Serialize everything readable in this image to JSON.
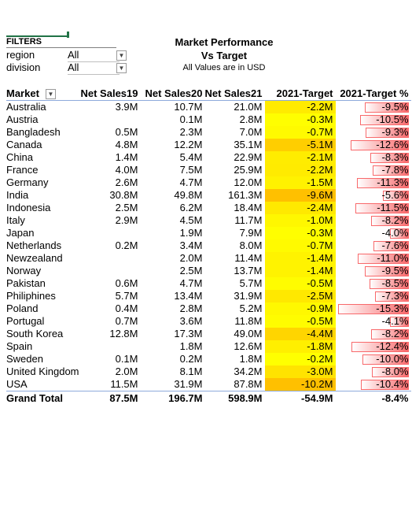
{
  "filters": {
    "label": "FILTERS",
    "items": [
      {
        "name": "region",
        "value": "All"
      },
      {
        "name": "division",
        "value": "All"
      }
    ]
  },
  "header": {
    "title_line1": "Market Performance",
    "title_line2": "Vs Target",
    "subtitle": "All Values are in USD"
  },
  "table": {
    "columns": [
      "Market",
      "Net Sales19",
      "Net Sales20",
      "Net Sales21",
      "2021-Target",
      "2021-Target %"
    ],
    "rows": [
      {
        "market": "Australia",
        "ns19": "3.9M",
        "ns20": "10.7M",
        "ns21": "21.0M",
        "tgt": "-2.2M",
        "tgt_val": -2.2,
        "pct": "-9.5%",
        "pct_val": -9.5
      },
      {
        "market": "Austria",
        "ns19": "",
        "ns20": "0.1M",
        "ns21": "2.8M",
        "tgt": "-0.3M",
        "tgt_val": -0.3,
        "pct": "-10.5%",
        "pct_val": -10.5
      },
      {
        "market": "Bangladesh",
        "ns19": "0.5M",
        "ns20": "2.3M",
        "ns21": "7.0M",
        "tgt": "-0.7M",
        "tgt_val": -0.7,
        "pct": "-9.3%",
        "pct_val": -9.3
      },
      {
        "market": "Canada",
        "ns19": "4.8M",
        "ns20": "12.2M",
        "ns21": "35.1M",
        "tgt": "-5.1M",
        "tgt_val": -5.1,
        "pct": "-12.6%",
        "pct_val": -12.6
      },
      {
        "market": "China",
        "ns19": "1.4M",
        "ns20": "5.4M",
        "ns21": "22.9M",
        "tgt": "-2.1M",
        "tgt_val": -2.1,
        "pct": "-8.3%",
        "pct_val": -8.3
      },
      {
        "market": "France",
        "ns19": "4.0M",
        "ns20": "7.5M",
        "ns21": "25.9M",
        "tgt": "-2.2M",
        "tgt_val": -2.2,
        "pct": "-7.8%",
        "pct_val": -7.8
      },
      {
        "market": "Germany",
        "ns19": "2.6M",
        "ns20": "4.7M",
        "ns21": "12.0M",
        "tgt": "-1.5M",
        "tgt_val": -1.5,
        "pct": "-11.3%",
        "pct_val": -11.3
      },
      {
        "market": "India",
        "ns19": "30.8M",
        "ns20": "49.8M",
        "ns21": "161.3M",
        "tgt": "-9.6M",
        "tgt_val": -9.6,
        "pct": "-5.6%",
        "pct_val": -5.6
      },
      {
        "market": "Indonesia",
        "ns19": "2.5M",
        "ns20": "6.2M",
        "ns21": "18.4M",
        "tgt": "-2.4M",
        "tgt_val": -2.4,
        "pct": "-11.5%",
        "pct_val": -11.5
      },
      {
        "market": "Italy",
        "ns19": "2.9M",
        "ns20": "4.5M",
        "ns21": "11.7M",
        "tgt": "-1.0M",
        "tgt_val": -1.0,
        "pct": "-8.2%",
        "pct_val": -8.2
      },
      {
        "market": "Japan",
        "ns19": "",
        "ns20": "1.9M",
        "ns21": "7.9M",
        "tgt": "-0.3M",
        "tgt_val": -0.3,
        "pct": "-4.0%",
        "pct_val": -4.0
      },
      {
        "market": "Netherlands",
        "ns19": "0.2M",
        "ns20": "3.4M",
        "ns21": "8.0M",
        "tgt": "-0.7M",
        "tgt_val": -0.7,
        "pct": "-7.6%",
        "pct_val": -7.6
      },
      {
        "market": "Newzealand",
        "ns19": "",
        "ns20": "2.0M",
        "ns21": "11.4M",
        "tgt": "-1.4M",
        "tgt_val": -1.4,
        "pct": "-11.0%",
        "pct_val": -11.0
      },
      {
        "market": "Norway",
        "ns19": "",
        "ns20": "2.5M",
        "ns21": "13.7M",
        "tgt": "-1.4M",
        "tgt_val": -1.4,
        "pct": "-9.5%",
        "pct_val": -9.5
      },
      {
        "market": "Pakistan",
        "ns19": "0.6M",
        "ns20": "4.7M",
        "ns21": "5.7M",
        "tgt": "-0.5M",
        "tgt_val": -0.5,
        "pct": "-8.5%",
        "pct_val": -8.5
      },
      {
        "market": "Philiphines",
        "ns19": "5.7M",
        "ns20": "13.4M",
        "ns21": "31.9M",
        "tgt": "-2.5M",
        "tgt_val": -2.5,
        "pct": "-7.3%",
        "pct_val": -7.3
      },
      {
        "market": "Poland",
        "ns19": "0.4M",
        "ns20": "2.8M",
        "ns21": "5.2M",
        "tgt": "-0.9M",
        "tgt_val": -0.9,
        "pct": "-15.3%",
        "pct_val": -15.3
      },
      {
        "market": "Portugal",
        "ns19": "0.7M",
        "ns20": "3.6M",
        "ns21": "11.8M",
        "tgt": "-0.5M",
        "tgt_val": -0.5,
        "pct": "-4.1%",
        "pct_val": -4.1
      },
      {
        "market": "South Korea",
        "ns19": "12.8M",
        "ns20": "17.3M",
        "ns21": "49.0M",
        "tgt": "-4.4M",
        "tgt_val": -4.4,
        "pct": "-8.2%",
        "pct_val": -8.2
      },
      {
        "market": "Spain",
        "ns19": "",
        "ns20": "1.8M",
        "ns21": "12.6M",
        "tgt": "-1.8M",
        "tgt_val": -1.8,
        "pct": "-12.4%",
        "pct_val": -12.4
      },
      {
        "market": "Sweden",
        "ns19": "0.1M",
        "ns20": "0.2M",
        "ns21": "1.8M",
        "tgt": "-0.2M",
        "tgt_val": -0.2,
        "pct": "-10.0%",
        "pct_val": -10.0
      },
      {
        "market": "United Kingdom",
        "ns19": "2.0M",
        "ns20": "8.1M",
        "ns21": "34.2M",
        "tgt": "-3.0M",
        "tgt_val": -3.0,
        "pct": "-8.0%",
        "pct_val": -8.0
      },
      {
        "market": "USA",
        "ns19": "11.5M",
        "ns20": "31.9M",
        "ns21": "87.8M",
        "tgt": "-10.2M",
        "tgt_val": -10.2,
        "pct": "-10.4%",
        "pct_val": -10.4
      }
    ],
    "total": {
      "market": "Grand Total",
      "ns19": "87.5M",
      "ns20": "196.7M",
      "ns21": "598.9M",
      "tgt": "-54.9M",
      "pct": "-8.4%"
    }
  },
  "colors": {
    "target_high": "#ffff00",
    "target_low": "#ffc000",
    "bar": "#f8696b",
    "header_border": "#8eaadb"
  },
  "icons": {
    "dropdown": "chevron-down-icon",
    "filter": "filter-dropdown-icon"
  }
}
